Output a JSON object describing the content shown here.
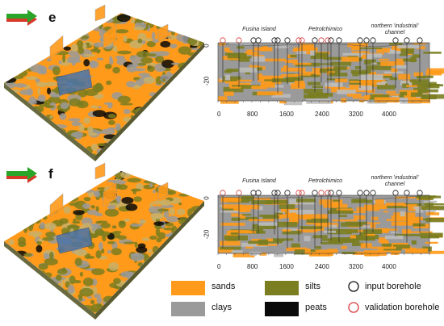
{
  "panels": [
    {
      "letter": "e",
      "section_labels": [
        "Fusina Island",
        "Petrolchimico",
        "northern 'industrial' channel"
      ],
      "x_ticks": [
        "0",
        "800",
        "1600",
        "2400",
        "3200",
        "4000"
      ],
      "y_ticks": [
        "0",
        "-20"
      ]
    },
    {
      "letter": "f",
      "section_labels": [
        "Fusina Island",
        "Petrolchimico",
        "northern 'industrial' channel"
      ],
      "x_ticks": [
        "0",
        "800",
        "1600",
        "2400",
        "3200",
        "4000"
      ],
      "y_ticks": [
        "0",
        "-20"
      ]
    }
  ],
  "legend": {
    "items": [
      {
        "label": "sands",
        "color": "#ff9a1a",
        "kind": "swatch"
      },
      {
        "label": "silts",
        "color": "#7a7d20",
        "kind": "swatch"
      },
      {
        "label": "input borehole",
        "color": "#111111",
        "kind": "circle"
      },
      {
        "label": "clays",
        "color": "#9a9a9a",
        "kind": "swatch"
      },
      {
        "label": "peats",
        "color": "#0a0a0a",
        "kind": "swatch"
      },
      {
        "label": "validation borehole",
        "color": "#d63a3a",
        "kind": "circle"
      }
    ]
  },
  "colors": {
    "sands": "#ff9a1a",
    "clays": "#9a9a9a",
    "silts": "#7a7d20",
    "peats": "#0a0a0a",
    "input_borehole": "#111111",
    "validation_borehole": "#d63a3a",
    "arrow_green": "#2aa52a",
    "arrow_red": "#d83a2a"
  },
  "icons": [
    "north-arrow-icon"
  ]
}
